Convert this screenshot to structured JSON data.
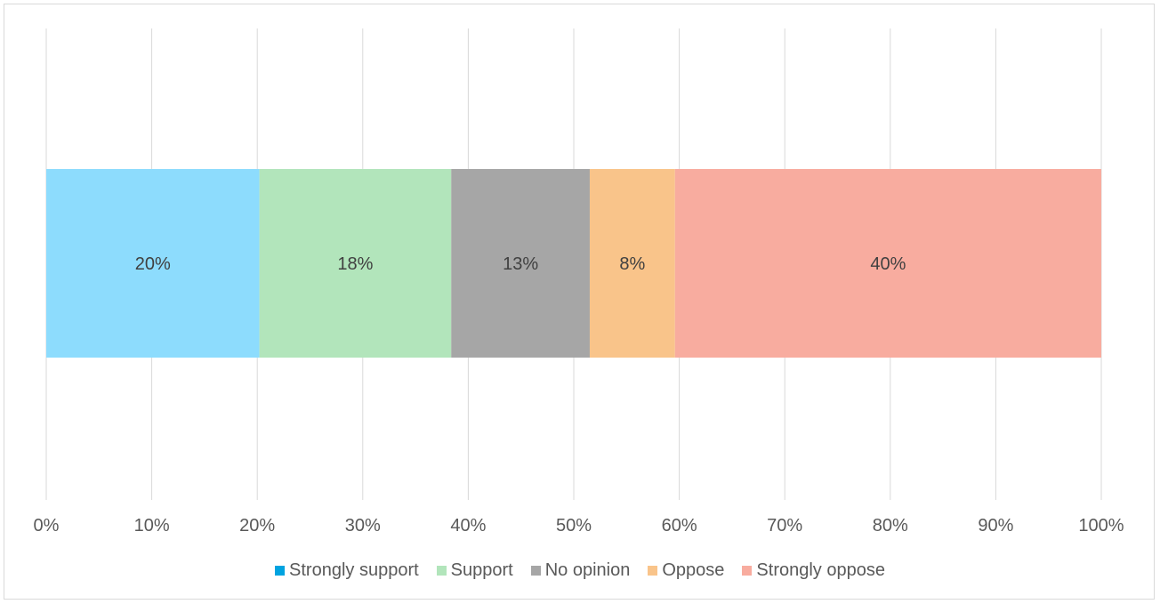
{
  "chart_data": {
    "type": "bar",
    "orientation": "horizontal",
    "stacked": true,
    "categories": [
      ""
    ],
    "series": [
      {
        "name": "Strongly support",
        "values": [
          20
        ],
        "label": "20%",
        "color": "#8ddcfd"
      },
      {
        "name": "Support",
        "values": [
          18
        ],
        "label": "18%",
        "color": "#b2e5bb"
      },
      {
        "name": "No opinion",
        "values": [
          13
        ],
        "label": "13%",
        "color": "#a6a6a6"
      },
      {
        "name": "Oppose",
        "values": [
          8
        ],
        "label": "8%",
        "color": "#f9c48a"
      },
      {
        "name": "Strongly oppose",
        "values": [
          40
        ],
        "label": "40%",
        "color": "#f8ac9f"
      }
    ],
    "x_ticks": [
      "0%",
      "10%",
      "20%",
      "30%",
      "40%",
      "50%",
      "60%",
      "70%",
      "80%",
      "90%",
      "100%"
    ],
    "xlim": [
      0,
      100
    ],
    "title": "",
    "xlabel": "",
    "ylabel": "",
    "grid": "vertical",
    "legend_position": "bottom",
    "legend_swatch_colors": [
      "#00a3e0",
      "#b2e5bb",
      "#a6a6a6",
      "#f9c48a",
      "#f8ac9f"
    ]
  }
}
